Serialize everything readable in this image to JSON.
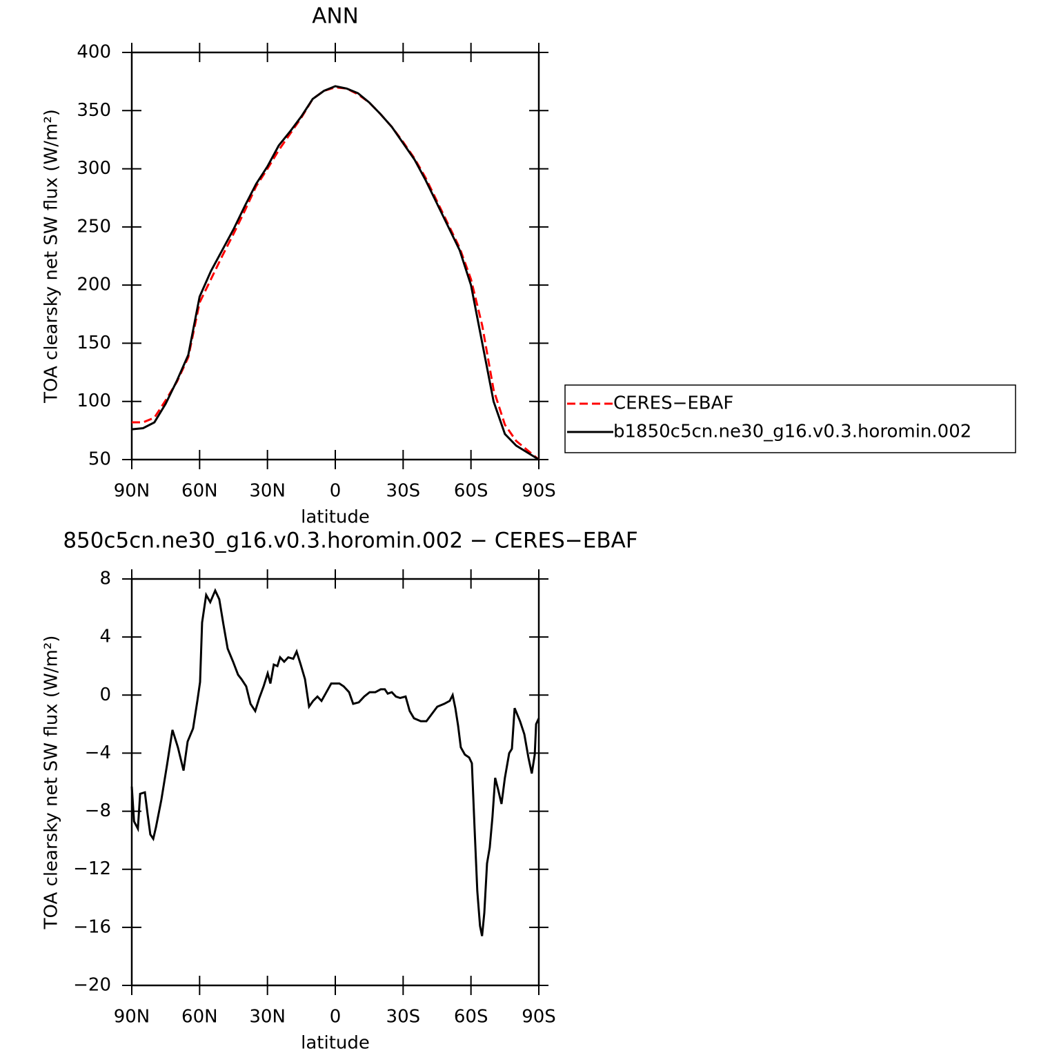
{
  "chart_data": [
    {
      "type": "line",
      "title": "ANN",
      "xlabel": "latitude",
      "ylabel": "TOA clearsky net SW flux (W/m²)",
      "x": [
        90,
        85,
        80,
        75,
        70,
        65,
        60,
        55,
        50,
        45,
        40,
        35,
        30,
        25,
        20,
        15,
        10,
        5,
        0,
        -5,
        -10,
        -15,
        -20,
        -25,
        -30,
        -35,
        -40,
        -45,
        -50,
        -55,
        -60,
        -65,
        -70,
        -75,
        -80,
        -85,
        -90
      ],
      "series": [
        {
          "name": "CERES−EBAF",
          "color": "#ff0000",
          "line_style": "dashed",
          "values": [
            82,
            82,
            86,
            101,
            117,
            138,
            185,
            205,
            225,
            244,
            264,
            285,
            300,
            316,
            330,
            344,
            360,
            367,
            370,
            369,
            364,
            357,
            347,
            336,
            323,
            309,
            292,
            272,
            252,
            232,
            205,
            165,
            110,
            80,
            66,
            58,
            50
          ]
        },
        {
          "name": "b1850c5cn.ne30_g16.v0.3.horomin.002",
          "color": "#000000",
          "line_style": "solid",
          "values": [
            76,
            77,
            82,
            98,
            118,
            140,
            190,
            212,
            230,
            248,
            268,
            287,
            302,
            320,
            332,
            345,
            360,
            367,
            371,
            369,
            365,
            357,
            347,
            336,
            322,
            308,
            290,
            270,
            250,
            230,
            200,
            150,
            100,
            72,
            62,
            56,
            50
          ]
        }
      ],
      "xlim": [
        90,
        -90
      ],
      "xticks": [
        {
          "value": 90,
          "label": "90N"
        },
        {
          "value": 60,
          "label": "60N"
        },
        {
          "value": 30,
          "label": "30N"
        },
        0,
        {
          "value": -30,
          "label": "30S"
        },
        {
          "value": -60,
          "label": "60S"
        },
        {
          "value": -90,
          "label": "90S"
        }
      ],
      "ylim": [
        50,
        400
      ],
      "yticks": [
        50,
        100,
        150,
        200,
        250,
        300,
        350,
        400
      ],
      "legend": "right"
    },
    {
      "type": "line",
      "title": "850c5cn.ne30_g16.v0.3.horomin.002 − CERES−EBAF",
      "xlabel": "latitude",
      "ylabel": "TOA clearsky net SW flux (W/m²)",
      "x": [
        90,
        89,
        87.3,
        86.3,
        84.2,
        83,
        81.8,
        80.5,
        79.3,
        76.9,
        74.4,
        72,
        69.6,
        67.1,
        65.3,
        62.9,
        61,
        59.8,
        58.9,
        57.1,
        55.3,
        53.1,
        51.3,
        49.5,
        47.6,
        45.2,
        43,
        41.5,
        39.4,
        37.5,
        35.4,
        33.6,
        31.7,
        29.9,
        28.7,
        27.2,
        25.6,
        24.4,
        22.6,
        20.8,
        18.6,
        17.1,
        15.3,
        13.4,
        11.6,
        9.8,
        7.9,
        6.1,
        4.3,
        1.8,
        0,
        -1.8,
        -3.7,
        -6.1,
        -7.9,
        -10.4,
        -12.8,
        -15.2,
        -17.7,
        -20.1,
        -21.9,
        -23.2,
        -25,
        -26.8,
        -28.7,
        -31.1,
        -32.9,
        -34.8,
        -37.8,
        -40.3,
        -42.7,
        -45.1,
        -48.2,
        -50.6,
        -51.9,
        -53.1,
        -54.3,
        -55.5,
        -57.3,
        -59.2,
        -60.4,
        -61.6,
        -62.8,
        -64,
        -64.9,
        -65.9,
        -67.1,
        -68.3,
        -69.5,
        -70.7,
        -72,
        -73.5,
        -75,
        -76.9,
        -78.1,
        -79.3,
        -81.7,
        -83.6,
        -85.4,
        -86.9,
        -88.2,
        -88.8,
        -90
      ],
      "series": [
        {
          "color": "#000000",
          "line_style": "solid",
          "values": [
            -6.3,
            -8.7,
            -9.2,
            -6.8,
            -6.7,
            -8.2,
            -9.6,
            -9.9,
            -9.1,
            -7.2,
            -4.8,
            -2.4,
            -3.6,
            -5.2,
            -3.2,
            -2.3,
            -0.4,
            0.9,
            5.0,
            6.9,
            6.4,
            7.2,
            6.6,
            4.9,
            3.2,
            2.3,
            1.4,
            1.1,
            0.6,
            -0.6,
            -1.1,
            -0.2,
            0.6,
            1.5,
            0.8,
            2.1,
            2.0,
            2.6,
            2.3,
            2.6,
            2.5,
            3.0,
            2.1,
            1.1,
            -0.8,
            -0.4,
            -0.1,
            -0.4,
            0.1,
            0.8,
            0.8,
            0.8,
            0.6,
            0.2,
            -0.6,
            -0.5,
            -0.1,
            0.2,
            0.2,
            0.4,
            0.4,
            0.1,
            0.2,
            -0.1,
            -0.2,
            -0.1,
            -1.1,
            -1.6,
            -1.8,
            -1.8,
            -1.3,
            -0.8,
            -0.6,
            -0.4,
            0,
            -0.9,
            -2.1,
            -3.6,
            -4.1,
            -4.3,
            -4.7,
            -9.2,
            -13.5,
            -15.9,
            -16.6,
            -15.0,
            -11.6,
            -10.5,
            -8.4,
            -5.7,
            -6.5,
            -7.5,
            -5.7,
            -4.0,
            -3.7,
            -0.9,
            -1.8,
            -2.7,
            -4.3,
            -5.4,
            -4.1,
            -2.0,
            -1.6
          ]
        }
      ],
      "xlim": [
        90,
        -90
      ],
      "xticks": [
        {
          "value": 90,
          "label": "90N"
        },
        {
          "value": 60,
          "label": "60N"
        },
        {
          "value": 30,
          "label": "30N"
        },
        0,
        {
          "value": -30,
          "label": "30S"
        },
        {
          "value": -60,
          "label": "60S"
        },
        {
          "value": -90,
          "label": "90S"
        }
      ],
      "ylim": [
        -20,
        8
      ],
      "yticks": [
        {
          "value": -20,
          "label": "−20"
        },
        {
          "value": -16,
          "label": "−16"
        },
        {
          "value": -12,
          "label": "−12"
        },
        {
          "value": -8,
          "label": "−8"
        },
        {
          "value": -4,
          "label": "−4"
        },
        0,
        4,
        8
      ]
    }
  ]
}
